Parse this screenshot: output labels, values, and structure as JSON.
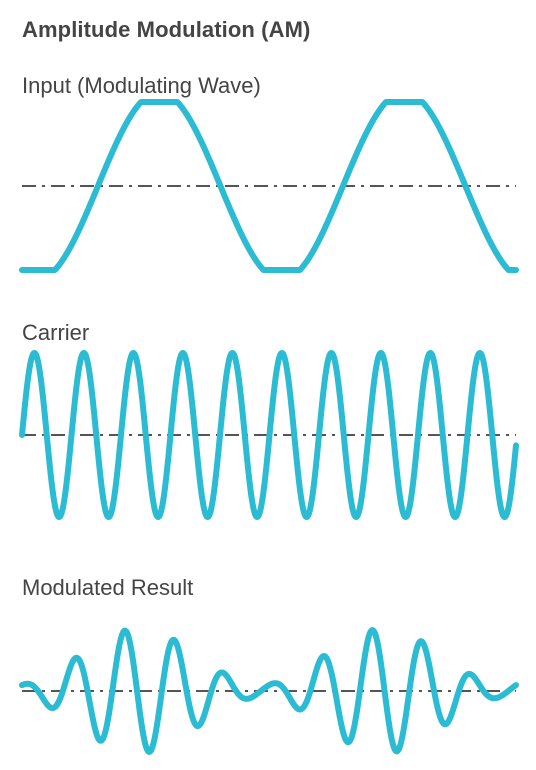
{
  "title": "Amplitude Modulation (AM)",
  "panels": {
    "input_label": "Input (Modulating Wave)",
    "carrier_label": "Carrier",
    "result_label": "Modulated Result"
  },
  "colors": {
    "wave": "#2bbcd4",
    "axis": "#555555",
    "text": "#444444"
  }
}
